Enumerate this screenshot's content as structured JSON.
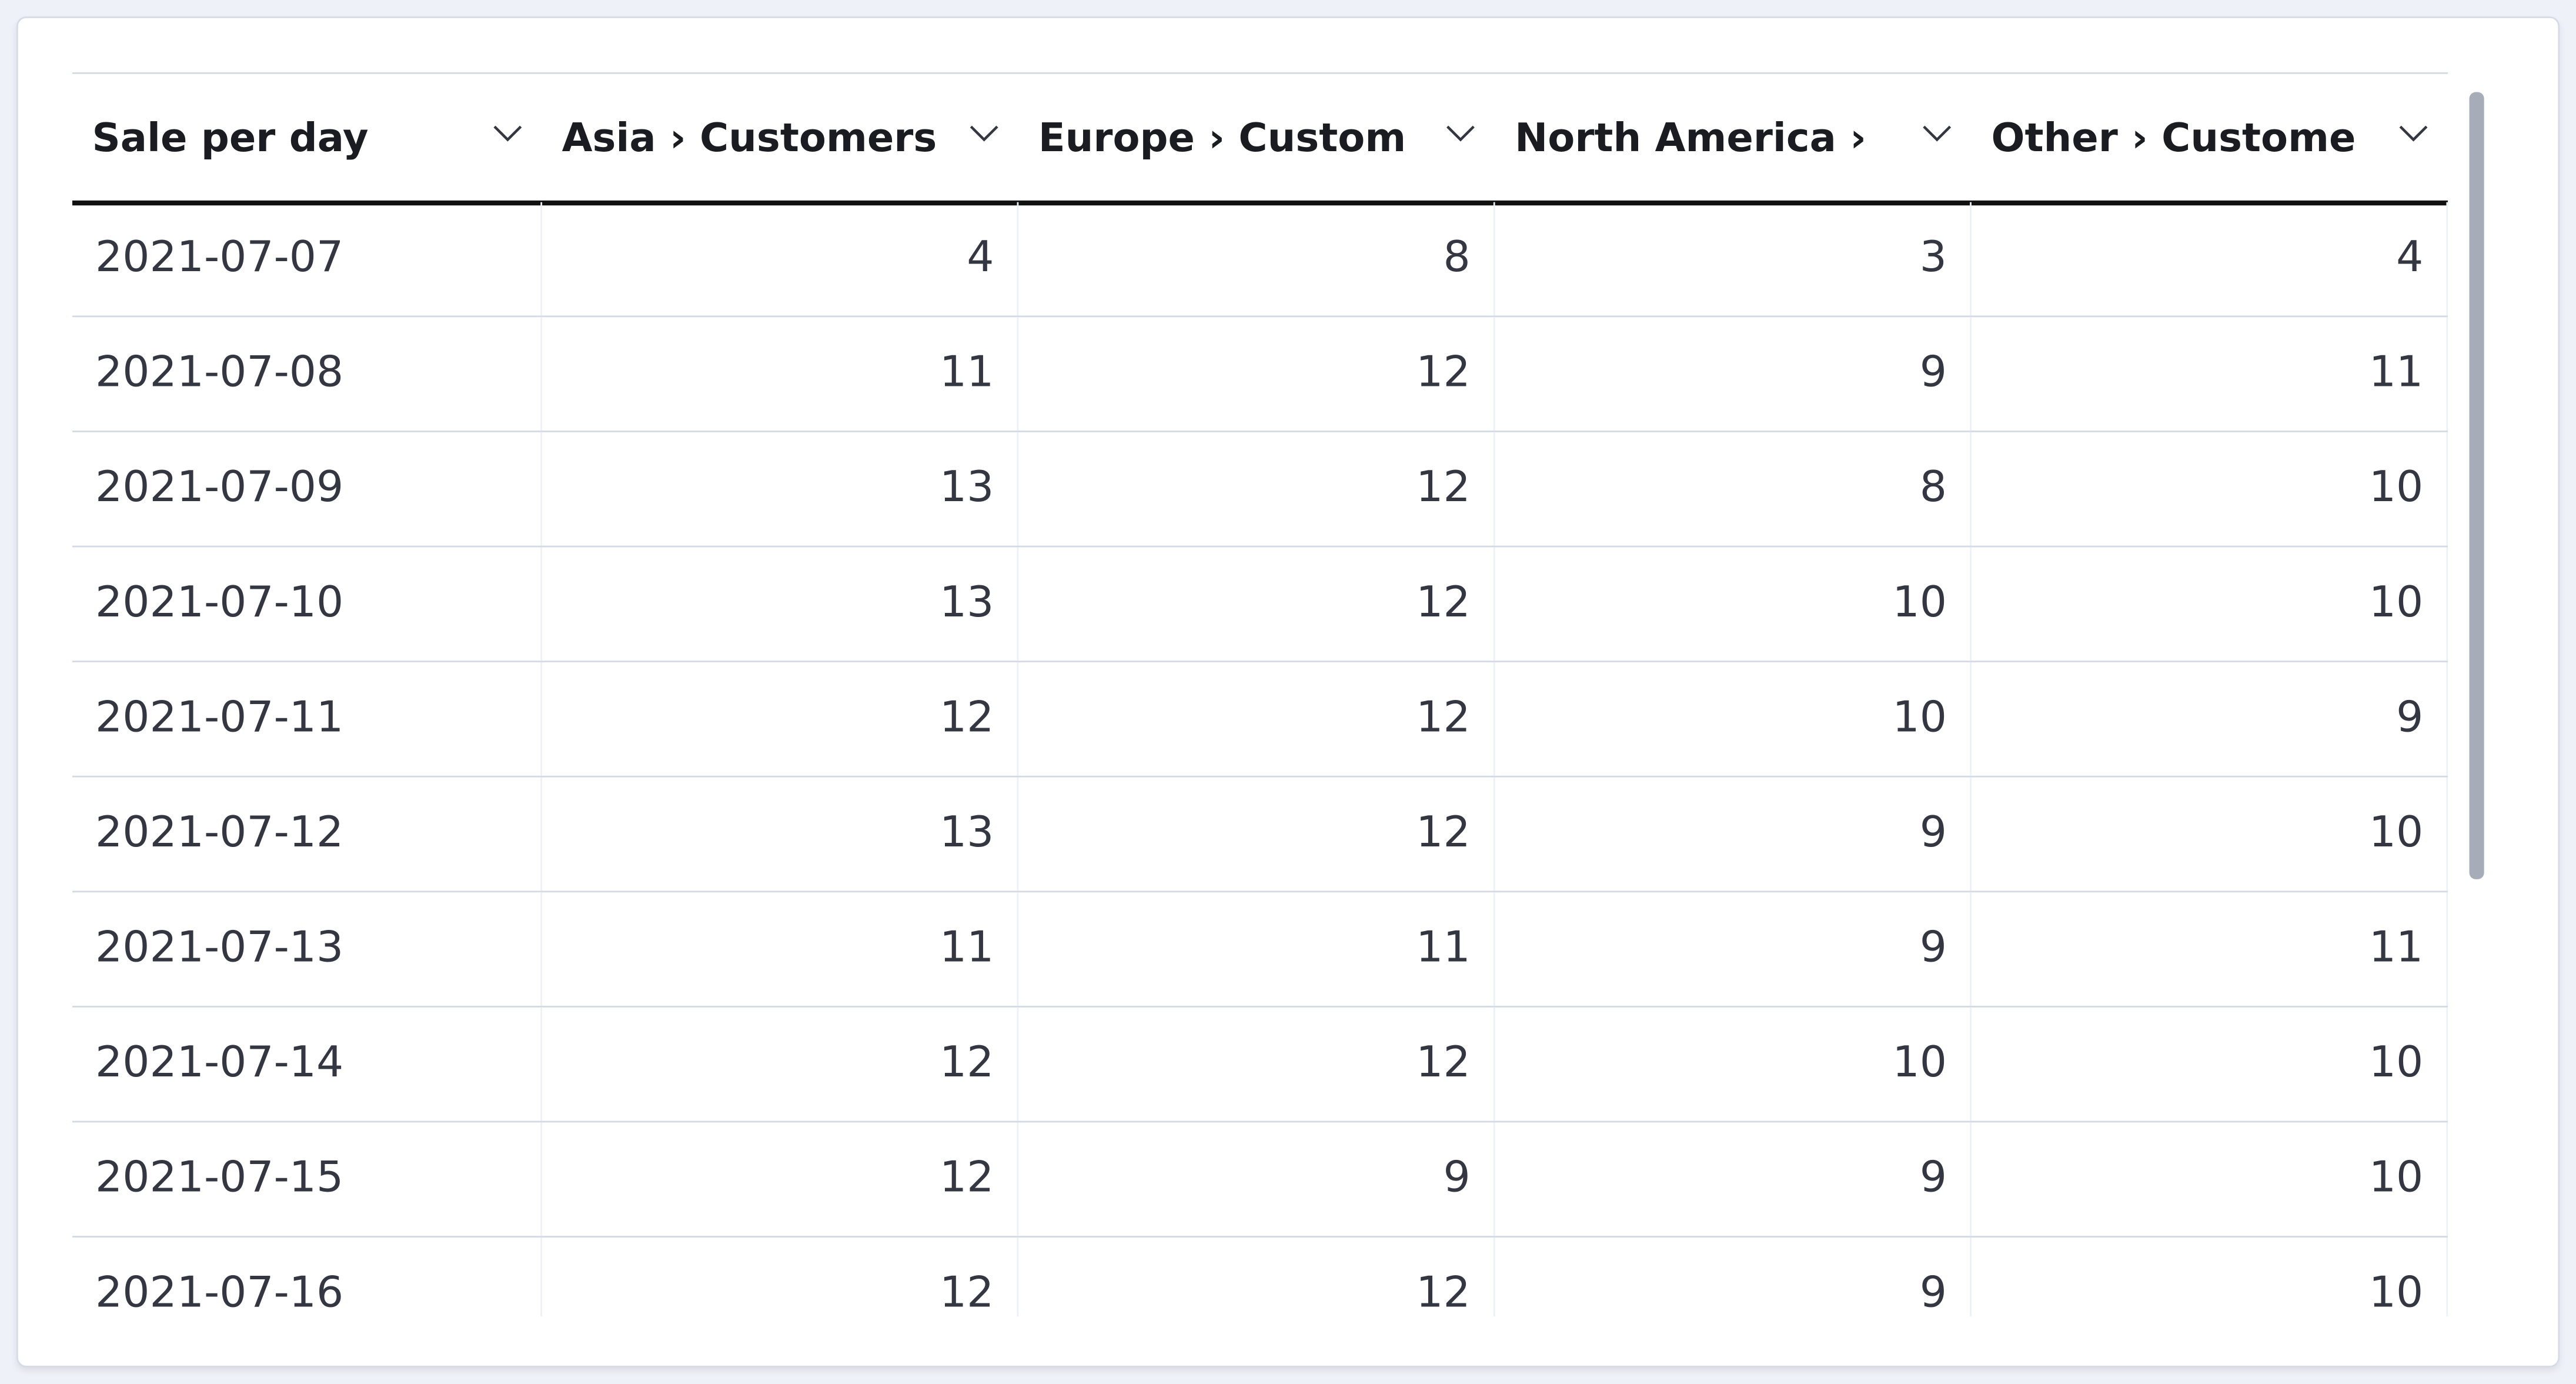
{
  "table": {
    "headers": [
      "Sale per day",
      "Asia › Customers",
      "Europe › Custom",
      "North America ›",
      "Other › Custome"
    ],
    "rows": [
      [
        "2021-07-07",
        4,
        8,
        3,
        4
      ],
      [
        "2021-07-08",
        11,
        12,
        9,
        11
      ],
      [
        "2021-07-09",
        13,
        12,
        8,
        10
      ],
      [
        "2021-07-10",
        13,
        12,
        10,
        10
      ],
      [
        "2021-07-11",
        12,
        12,
        10,
        9
      ],
      [
        "2021-07-12",
        13,
        12,
        9,
        10
      ],
      [
        "2021-07-13",
        11,
        11,
        9,
        11
      ],
      [
        "2021-07-14",
        12,
        12,
        10,
        10
      ],
      [
        "2021-07-15",
        12,
        9,
        9,
        10
      ],
      [
        "2021-07-16",
        12,
        12,
        9,
        10
      ]
    ]
  }
}
